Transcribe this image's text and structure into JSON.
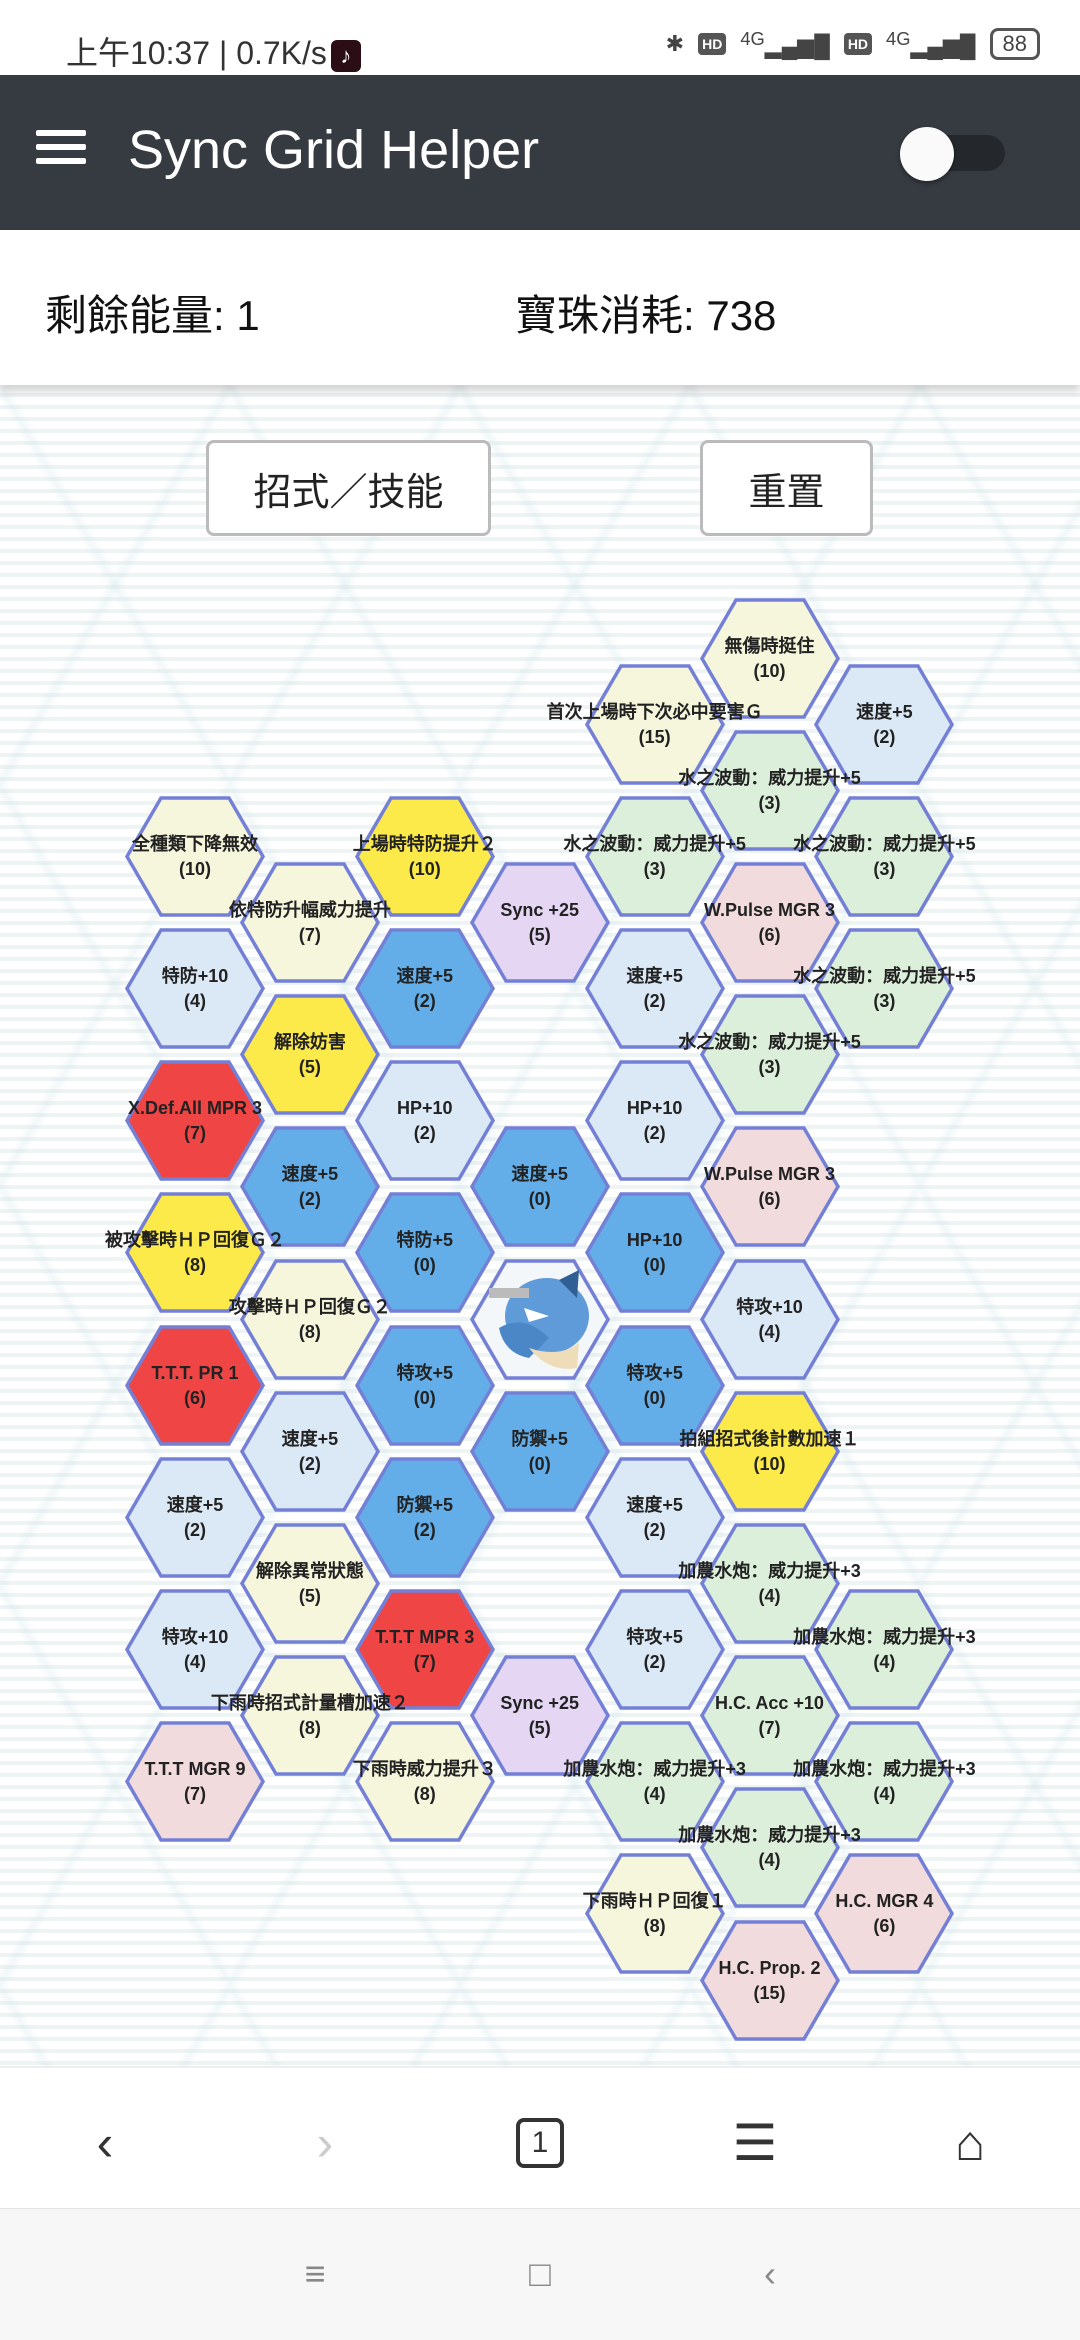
{
  "status_bar": {
    "time": "上午10:37",
    "speed": "0.7K/s",
    "network1": "4G",
    "network2": "4G",
    "hd": "HD",
    "battery": "88"
  },
  "app": {
    "title": "Sync Grid Helper",
    "toggle_on": false
  },
  "info": {
    "energy_label": "剩餘能量: 1",
    "orbs_label": "寶珠消耗: 738"
  },
  "buttons": {
    "moves": "招式／技能",
    "reset": "重置"
  },
  "colors": {
    "blue": "#63aee8",
    "blue_light": "#dbe9f6",
    "yellow": "#fce94a",
    "yellow_light": "#f6f6dc",
    "red": "#ef4545",
    "pink": "#f2dbdc",
    "green": "#dcefda",
    "purple": "#e5d6f3",
    "border": "#7480d6"
  },
  "hexes": [
    {
      "label": "全種類下降無效",
      "cost": "(10)",
      "type": "yellow_light"
    },
    {
      "label": "特防+10",
      "cost": "(4)",
      "type": "blue_light"
    },
    {
      "label": "X.Def.All MPR 3",
      "cost": "(7)",
      "type": "red"
    },
    {
      "label": "被攻擊時ＨＰ回復Ｇ２",
      "cost": "(8)",
      "type": "yellow"
    },
    {
      "label": "T.T.T. PR 1",
      "cost": "(6)",
      "type": "red"
    },
    {
      "label": "速度+5",
      "cost": "(2)",
      "type": "blue_light"
    },
    {
      "label": "特攻+10",
      "cost": "(4)",
      "type": "blue_light"
    },
    {
      "label": "T.T.T MGR 9",
      "cost": "(7)",
      "type": "pink"
    },
    {
      "label": "依特防升幅威力提升",
      "cost": "(7)",
      "type": "yellow_light"
    },
    {
      "label": "解除妨害",
      "cost": "(5)",
      "type": "yellow"
    },
    {
      "label": "速度+5",
      "cost": "(2)",
      "type": "blue"
    },
    {
      "label": "攻擊時ＨＰ回復Ｇ２",
      "cost": "(8)",
      "type": "yellow_light"
    },
    {
      "label": "速度+5",
      "cost": "(2)",
      "type": "blue_light"
    },
    {
      "label": "解除異常狀態",
      "cost": "(5)",
      "type": "yellow_light"
    },
    {
      "label": "下雨時招式計量槽加速２",
      "cost": "(8)",
      "type": "yellow_light"
    },
    {
      "label": "上場時特防提升２",
      "cost": "(10)",
      "type": "yellow"
    },
    {
      "label": "速度+5",
      "cost": "(2)",
      "type": "blue"
    },
    {
      "label": "HP+10",
      "cost": "(2)",
      "type": "blue_light"
    },
    {
      "label": "特防+5",
      "cost": "(0)",
      "type": "blue"
    },
    {
      "label": "特攻+5",
      "cost": "(0)",
      "type": "blue"
    },
    {
      "label": "防禦+5",
      "cost": "(2)",
      "type": "blue"
    },
    {
      "label": "T.T.T MPR 3",
      "cost": "(7)",
      "type": "red"
    },
    {
      "label": "下雨時威力提升３",
      "cost": "(8)",
      "type": "yellow_light"
    },
    {
      "label": "Sync +25",
      "cost": "(5)",
      "type": "purple"
    },
    {
      "label": "速度+5",
      "cost": "(0)",
      "type": "blue"
    },
    {
      "label": "",
      "cost": "",
      "type": "center"
    },
    {
      "label": "防禦+5",
      "cost": "(0)",
      "type": "blue"
    },
    {
      "label": "Sync +25",
      "cost": "(5)",
      "type": "purple"
    },
    {
      "label": "首次上場時下次必中要害Ｇ",
      "cost": "(15)",
      "type": "yellow_light"
    },
    {
      "label": "水之波動：威力提升+5",
      "cost": "(3)",
      "type": "green"
    },
    {
      "label": "速度+5",
      "cost": "(2)",
      "type": "blue_light"
    },
    {
      "label": "HP+10",
      "cost": "(2)",
      "type": "blue_light"
    },
    {
      "label": "HP+10",
      "cost": "(0)",
      "type": "blue"
    },
    {
      "label": "特攻+5",
      "cost": "(0)",
      "type": "blue"
    },
    {
      "label": "速度+5",
      "cost": "(2)",
      "type": "blue_light"
    },
    {
      "label": "特攻+5",
      "cost": "(2)",
      "type": "blue_light"
    },
    {
      "label": "加農水炮：威力提升+3",
      "cost": "(4)",
      "type": "green"
    },
    {
      "label": "下雨時ＨＰ回復１",
      "cost": "(8)",
      "type": "yellow_light"
    },
    {
      "label": "無傷時挺住",
      "cost": "(10)",
      "type": "yellow_light"
    },
    {
      "label": "水之波動：威力提升+5",
      "cost": "(3)",
      "type": "green"
    },
    {
      "label": "W.Pulse MGR 3",
      "cost": "(6)",
      "type": "pink"
    },
    {
      "label": "水之波動：威力提升+5",
      "cost": "(3)",
      "type": "green"
    },
    {
      "label": "W.Pulse MGR 3",
      "cost": "(6)",
      "type": "pink"
    },
    {
      "label": "特攻+10",
      "cost": "(4)",
      "type": "blue_light"
    },
    {
      "label": "拍組招式後計數加速１",
      "cost": "(10)",
      "type": "yellow"
    },
    {
      "label": "加農水炮：威力提升+3",
      "cost": "(4)",
      "type": "green"
    },
    {
      "label": "H.C. Acc +10",
      "cost": "(7)",
      "type": "green"
    },
    {
      "label": "加農水炮：威力提升+3",
      "cost": "(4)",
      "type": "green"
    },
    {
      "label": "H.C. Prop. 2",
      "cost": "(15)",
      "type": "pink"
    },
    {
      "label": "速度+5",
      "cost": "(2)",
      "type": "blue_light"
    },
    {
      "label": "水之波動：威力提升+5",
      "cost": "(3)",
      "type": "green"
    },
    {
      "label": "水之波動：威力提升+5",
      "cost": "(3)",
      "type": "green"
    },
    {
      "label": "加農水炮：威力提升+3",
      "cost": "(4)",
      "type": "green"
    },
    {
      "label": "加農水炮：威力提升+3",
      "cost": "(4)",
      "type": "green"
    },
    {
      "label": "H.C. MGR 4",
      "cost": "(6)",
      "type": "pink"
    }
  ],
  "browser_nav": {
    "tab_count": "1"
  }
}
